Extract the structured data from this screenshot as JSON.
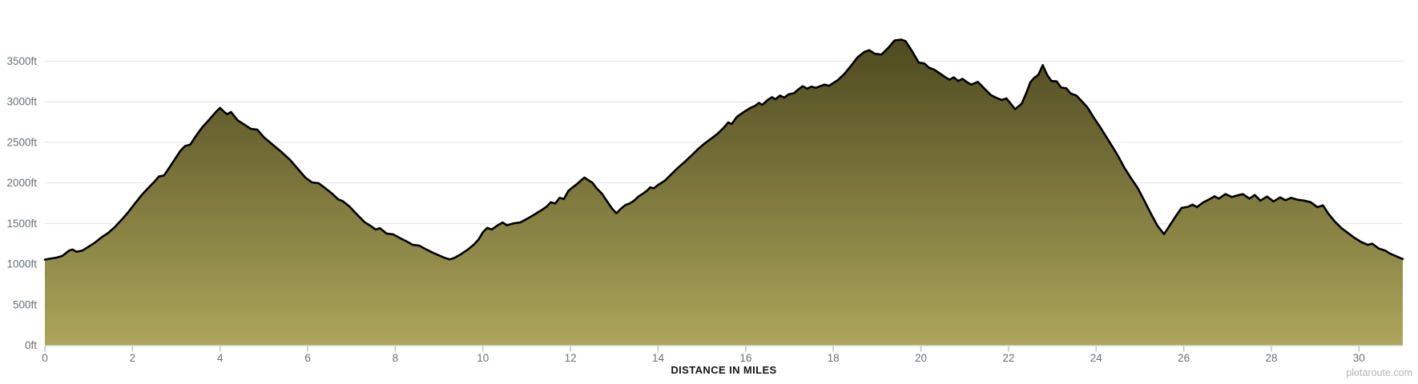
{
  "watermark": "plotaroute.com",
  "colors": {
    "background": "#ffffff",
    "fill_top": "#4c481e",
    "fill_bottom": "#ada65b",
    "profile_line": "#000000",
    "grid_line": "#e4e4e4",
    "axis_line": "#d5dce1",
    "tick_mark": "#b9c4cc",
    "tick_label": "#6a6f73",
    "axis_title": "#141414",
    "watermark": "#b4b4b4"
  },
  "chart_data": {
    "type": "area",
    "title": "",
    "xlabel": "DISTANCE IN MILES",
    "ylabel": "",
    "x_unit": "miles",
    "y_unit": "ft",
    "xlim": [
      0,
      31
    ],
    "ylim": [
      0,
      3900
    ],
    "grid": "horizontal-only",
    "legend": "none",
    "x_ticks": [
      0,
      2,
      4,
      6,
      8,
      10,
      12,
      14,
      16,
      18,
      20,
      22,
      24,
      26,
      28,
      30
    ],
    "x_tick_labels": [
      "0",
      "2",
      "4",
      "6",
      "8",
      "10",
      "12",
      "14",
      "16",
      "18",
      "20",
      "22",
      "24",
      "26",
      "28",
      "30"
    ],
    "y_ticks": [
      0,
      500,
      1000,
      1500,
      2000,
      2500,
      3000,
      3500
    ],
    "y_tick_labels": [
      "0ft",
      "500ft",
      "1000ft",
      "1500ft",
      "2000ft",
      "2500ft",
      "3000ft",
      "3500ft"
    ],
    "series": [
      {
        "name": "elevation-profile",
        "points": [
          [
            0,
            1055
          ],
          [
            0.1,
            1065
          ],
          [
            0.25,
            1078
          ],
          [
            0.4,
            1100
          ],
          [
            0.55,
            1165
          ],
          [
            0.63,
            1180
          ],
          [
            0.72,
            1152
          ],
          [
            0.85,
            1165
          ],
          [
            1,
            1215
          ],
          [
            1.15,
            1268
          ],
          [
            1.3,
            1332
          ],
          [
            1.45,
            1385
          ],
          [
            1.6,
            1458
          ],
          [
            1.75,
            1545
          ],
          [
            1.9,
            1638
          ],
          [
            2.05,
            1742
          ],
          [
            2.2,
            1845
          ],
          [
            2.35,
            1932
          ],
          [
            2.5,
            2015
          ],
          [
            2.6,
            2078
          ],
          [
            2.72,
            2092
          ],
          [
            2.85,
            2195
          ],
          [
            3,
            2318
          ],
          [
            3.1,
            2400
          ],
          [
            3.2,
            2455
          ],
          [
            3.32,
            2472
          ],
          [
            3.45,
            2580
          ],
          [
            3.6,
            2690
          ],
          [
            3.75,
            2778
          ],
          [
            3.9,
            2872
          ],
          [
            4,
            2925
          ],
          [
            4.08,
            2882
          ],
          [
            4.16,
            2846
          ],
          [
            4.25,
            2874
          ],
          [
            4.4,
            2772
          ],
          [
            4.55,
            2720
          ],
          [
            4.7,
            2667
          ],
          [
            4.85,
            2656
          ],
          [
            5,
            2562
          ],
          [
            5.2,
            2472
          ],
          [
            5.4,
            2382
          ],
          [
            5.6,
            2282
          ],
          [
            5.8,
            2158
          ],
          [
            5.95,
            2065
          ],
          [
            6.1,
            2006
          ],
          [
            6.25,
            1996
          ],
          [
            6.4,
            1936
          ],
          [
            6.55,
            1872
          ],
          [
            6.7,
            1796
          ],
          [
            6.8,
            1776
          ],
          [
            6.95,
            1712
          ],
          [
            7.1,
            1626
          ],
          [
            7.3,
            1516
          ],
          [
            7.45,
            1466
          ],
          [
            7.55,
            1426
          ],
          [
            7.65,
            1441
          ],
          [
            7.8,
            1376
          ],
          [
            7.95,
            1366
          ],
          [
            8.1,
            1322
          ],
          [
            8.25,
            1282
          ],
          [
            8.4,
            1236
          ],
          [
            8.55,
            1226
          ],
          [
            8.7,
            1182
          ],
          [
            8.85,
            1142
          ],
          [
            9,
            1106
          ],
          [
            9.15,
            1072
          ],
          [
            9.25,
            1058
          ],
          [
            9.35,
            1076
          ],
          [
            9.5,
            1122
          ],
          [
            9.65,
            1176
          ],
          [
            9.8,
            1242
          ],
          [
            9.9,
            1302
          ],
          [
            10,
            1392
          ],
          [
            10.1,
            1446
          ],
          [
            10.2,
            1426
          ],
          [
            10.35,
            1482
          ],
          [
            10.45,
            1512
          ],
          [
            10.55,
            1478
          ],
          [
            10.7,
            1502
          ],
          [
            10.85,
            1512
          ],
          [
            11,
            1556
          ],
          [
            11.15,
            1602
          ],
          [
            11.3,
            1652
          ],
          [
            11.45,
            1706
          ],
          [
            11.55,
            1762
          ],
          [
            11.65,
            1746
          ],
          [
            11.75,
            1816
          ],
          [
            11.85,
            1802
          ],
          [
            11.95,
            1902
          ],
          [
            12.05,
            1946
          ],
          [
            12.15,
            1986
          ],
          [
            12.25,
            2036
          ],
          [
            12.32,
            2066
          ],
          [
            12.4,
            2036
          ],
          [
            12.5,
            2002
          ],
          [
            12.6,
            1932
          ],
          [
            12.72,
            1866
          ],
          [
            12.85,
            1762
          ],
          [
            12.95,
            1682
          ],
          [
            13.05,
            1626
          ],
          [
            13.15,
            1682
          ],
          [
            13.25,
            1726
          ],
          [
            13.35,
            1746
          ],
          [
            13.45,
            1782
          ],
          [
            13.55,
            1832
          ],
          [
            13.65,
            1866
          ],
          [
            13.75,
            1906
          ],
          [
            13.82,
            1946
          ],
          [
            13.9,
            1932
          ],
          [
            14,
            1976
          ],
          [
            14.15,
            2026
          ],
          [
            14.3,
            2106
          ],
          [
            14.45,
            2186
          ],
          [
            14.6,
            2256
          ],
          [
            14.75,
            2332
          ],
          [
            14.9,
            2412
          ],
          [
            15.05,
            2482
          ],
          [
            15.2,
            2542
          ],
          [
            15.35,
            2602
          ],
          [
            15.5,
            2682
          ],
          [
            15.6,
            2746
          ],
          [
            15.68,
            2726
          ],
          [
            15.8,
            2816
          ],
          [
            15.95,
            2872
          ],
          [
            16.1,
            2922
          ],
          [
            16.22,
            2952
          ],
          [
            16.3,
            2986
          ],
          [
            16.38,
            2962
          ],
          [
            16.5,
            3022
          ],
          [
            16.6,
            3056
          ],
          [
            16.68,
            3032
          ],
          [
            16.78,
            3076
          ],
          [
            16.88,
            3052
          ],
          [
            16.98,
            3092
          ],
          [
            17.1,
            3106
          ],
          [
            17.2,
            3152
          ],
          [
            17.3,
            3192
          ],
          [
            17.4,
            3162
          ],
          [
            17.5,
            3186
          ],
          [
            17.6,
            3172
          ],
          [
            17.7,
            3192
          ],
          [
            17.8,
            3212
          ],
          [
            17.9,
            3196
          ],
          [
            18,
            3232
          ],
          [
            18.1,
            3266
          ],
          [
            18.25,
            3342
          ],
          [
            18.4,
            3442
          ],
          [
            18.55,
            3546
          ],
          [
            18.7,
            3612
          ],
          [
            18.82,
            3636
          ],
          [
            18.95,
            3592
          ],
          [
            19.1,
            3582
          ],
          [
            19.25,
            3662
          ],
          [
            19.4,
            3756
          ],
          [
            19.55,
            3766
          ],
          [
            19.65,
            3746
          ],
          [
            19.8,
            3622
          ],
          [
            19.95,
            3482
          ],
          [
            20.08,
            3472
          ],
          [
            20.18,
            3422
          ],
          [
            20.3,
            3396
          ],
          [
            20.45,
            3342
          ],
          [
            20.55,
            3306
          ],
          [
            20.65,
            3272
          ],
          [
            20.75,
            3302
          ],
          [
            20.85,
            3256
          ],
          [
            20.95,
            3282
          ],
          [
            21.05,
            3242
          ],
          [
            21.15,
            3212
          ],
          [
            21.3,
            3246
          ],
          [
            21.45,
            3162
          ],
          [
            21.6,
            3082
          ],
          [
            21.75,
            3042
          ],
          [
            21.85,
            3022
          ],
          [
            21.95,
            3042
          ],
          [
            22.05,
            2976
          ],
          [
            22.15,
            2908
          ],
          [
            22.3,
            2976
          ],
          [
            22.4,
            3102
          ],
          [
            22.5,
            3242
          ],
          [
            22.58,
            3292
          ],
          [
            22.68,
            3332
          ],
          [
            22.78,
            3452
          ],
          [
            22.88,
            3332
          ],
          [
            22.98,
            3256
          ],
          [
            23.1,
            3252
          ],
          [
            23.2,
            3176
          ],
          [
            23.32,
            3166
          ],
          [
            23.42,
            3102
          ],
          [
            23.55,
            3076
          ],
          [
            23.68,
            3002
          ],
          [
            23.8,
            2932
          ],
          [
            23.95,
            2802
          ],
          [
            24.1,
            2682
          ],
          [
            24.25,
            2552
          ],
          [
            24.4,
            2422
          ],
          [
            24.5,
            2332
          ],
          [
            24.65,
            2182
          ],
          [
            24.8,
            2056
          ],
          [
            24.95,
            1936
          ],
          [
            25.1,
            1782
          ],
          [
            25.25,
            1622
          ],
          [
            25.4,
            1472
          ],
          [
            25.55,
            1368
          ],
          [
            25.7,
            1492
          ],
          [
            25.82,
            1592
          ],
          [
            25.95,
            1692
          ],
          [
            26.1,
            1706
          ],
          [
            26.2,
            1732
          ],
          [
            26.3,
            1702
          ],
          [
            26.45,
            1762
          ],
          [
            26.6,
            1802
          ],
          [
            26.7,
            1836
          ],
          [
            26.8,
            1806
          ],
          [
            26.95,
            1862
          ],
          [
            27.1,
            1826
          ],
          [
            27.22,
            1846
          ],
          [
            27.35,
            1862
          ],
          [
            27.5,
            1806
          ],
          [
            27.62,
            1852
          ],
          [
            27.75,
            1782
          ],
          [
            27.9,
            1832
          ],
          [
            28.05,
            1772
          ],
          [
            28.2,
            1822
          ],
          [
            28.32,
            1786
          ],
          [
            28.45,
            1816
          ],
          [
            28.6,
            1792
          ],
          [
            28.75,
            1782
          ],
          [
            28.9,
            1762
          ],
          [
            29.05,
            1702
          ],
          [
            29.18,
            1722
          ],
          [
            29.3,
            1622
          ],
          [
            29.45,
            1522
          ],
          [
            29.6,
            1442
          ],
          [
            29.75,
            1382
          ],
          [
            29.9,
            1322
          ],
          [
            30.05,
            1272
          ],
          [
            30.2,
            1236
          ],
          [
            30.3,
            1252
          ],
          [
            30.45,
            1192
          ],
          [
            30.6,
            1166
          ],
          [
            30.7,
            1132
          ],
          [
            30.85,
            1096
          ],
          [
            31,
            1062
          ]
        ]
      }
    ]
  }
}
